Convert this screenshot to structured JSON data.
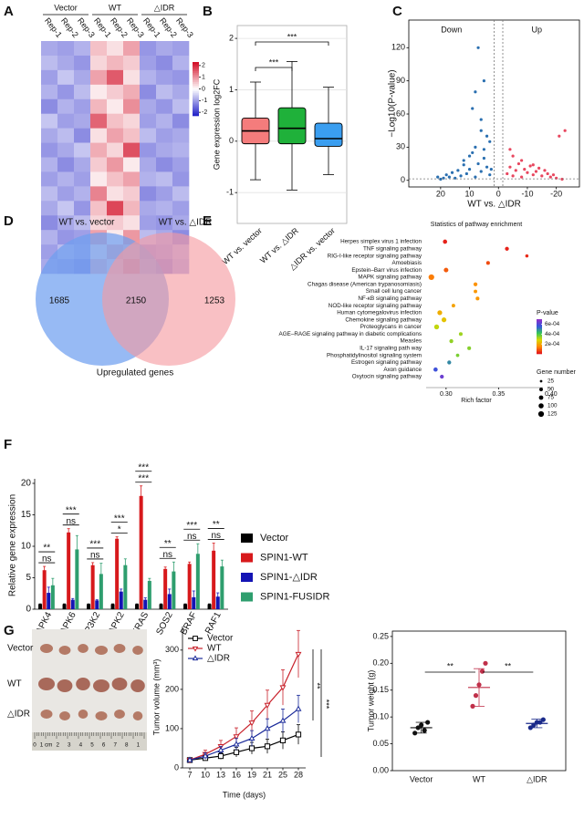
{
  "chart_data": [
    {
      "type": "heatmap",
      "panel": "A",
      "groups": [
        "Vector",
        "WT",
        "△IDR"
      ],
      "columns": [
        "Rep-1",
        "Rep-2",
        "Rep-3",
        "Rep-1",
        "Rep-2",
        "Rep-3",
        "Rep-1",
        "Rep-2",
        "Rep-3"
      ],
      "values": [
        [
          -0.9,
          -1.0,
          -0.8,
          0.6,
          0.3,
          0.9,
          -1.1,
          -0.9,
          -1.0
        ],
        [
          -0.7,
          -0.9,
          -1.1,
          0.4,
          0.7,
          0.5,
          -1.0,
          -1.2,
          -0.8
        ],
        [
          -1.0,
          -0.6,
          -0.9,
          0.9,
          1.6,
          0.3,
          -0.8,
          -1.0,
          -1.1
        ],
        [
          -0.8,
          -1.1,
          -0.7,
          0.2,
          0.5,
          0.8,
          -1.2,
          -0.7,
          -0.9
        ],
        [
          -1.2,
          -0.8,
          -1.0,
          0.7,
          0.2,
          1.1,
          -0.9,
          -1.1,
          -0.7
        ],
        [
          -0.6,
          -1.0,
          -0.9,
          1.5,
          0.6,
          0.4,
          -1.0,
          -0.8,
          -1.2
        ],
        [
          -0.9,
          -0.7,
          -1.2,
          0.3,
          0.9,
          0.6,
          -0.7,
          -1.0,
          -0.9
        ],
        [
          -1.1,
          -0.9,
          -0.6,
          0.8,
          0.4,
          1.7,
          -1.1,
          -0.9,
          -0.8
        ],
        [
          -0.8,
          -1.2,
          -0.9,
          0.5,
          1.0,
          0.2,
          -0.9,
          -1.2,
          -1.0
        ],
        [
          -1.0,
          -0.8,
          -1.0,
          0.2,
          0.6,
          0.9,
          -0.8,
          -0.7,
          -1.1
        ],
        [
          -0.7,
          -1.0,
          -0.8,
          1.2,
          0.3,
          0.5,
          -1.2,
          -1.0,
          -0.7
        ],
        [
          -0.9,
          -0.6,
          -1.1,
          0.6,
          1.8,
          0.7,
          -0.9,
          -0.8,
          -1.0
        ],
        [
          -1.2,
          -0.9,
          -0.7,
          0.4,
          0.5,
          0.3,
          -1.0,
          -1.1,
          -0.9
        ],
        [
          -0.8,
          -1.1,
          -1.0,
          0.9,
          0.2,
          1.0,
          -0.7,
          -0.9,
          -1.2
        ],
        [
          -1.0,
          -0.7,
          -0.9,
          0.3,
          0.8,
          0.6,
          -1.1,
          -1.0,
          -0.8
        ],
        [
          -0.9,
          -1.0,
          -1.2,
          0.7,
          0.4,
          1.4,
          -0.8,
          -1.2,
          -0.9
        ]
      ],
      "zlim": [
        -2.3,
        2.3
      ],
      "zticks": [
        2,
        1,
        0,
        -1,
        -2
      ],
      "colormap": [
        "#2323c8",
        "#ffffff",
        "#d3122a"
      ]
    },
    {
      "type": "box",
      "panel": "B",
      "ylabel": "Gene expression log2FC",
      "categories": [
        "WT vs. vector",
        "WT vs. △IDR",
        "△IDR vs. vector"
      ],
      "stats": [
        [
          -0.75,
          -0.05,
          0.2,
          0.45,
          1.15
        ],
        [
          -0.95,
          -0.05,
          0.25,
          0.65,
          1.55
        ],
        [
          -0.65,
          -0.1,
          0.05,
          0.35,
          1.05
        ]
      ],
      "colors": [
        "#f47c7c",
        "#1fb13a",
        "#3a9ef0"
      ],
      "ylim": [
        -1.6,
        2.25
      ],
      "yticks": [
        -1,
        0,
        1,
        2
      ],
      "grid": true,
      "brackets": [
        {
          "pair": [
            0,
            1
          ],
          "label": "***"
        },
        {
          "pair": [
            0,
            2
          ],
          "label": "***"
        }
      ]
    },
    {
      "type": "scatter",
      "panel": "C",
      "xlabel": "WT vs. △IDR",
      "ylabel": "−Log10(P-value)",
      "regions": [
        "Down",
        "Up"
      ],
      "series": [
        {
          "name": "Down",
          "color": "#2a6fb0",
          "x": [
            3,
            4,
            5,
            6,
            7,
            8,
            9,
            10,
            11,
            12,
            13,
            14,
            15,
            16,
            17,
            18,
            19,
            20,
            4,
            6,
            8,
            10,
            12,
            5,
            7,
            9,
            3,
            6,
            2.5,
            8,
            21,
            5
          ],
          "y": [
            5,
            12,
            20,
            8,
            15,
            3,
            25,
            10,
            6,
            18,
            4,
            9,
            2,
            7,
            3,
            5,
            2,
            1,
            40,
            55,
            30,
            22,
            14,
            90,
            120,
            65,
            35,
            45,
            10,
            80,
            3,
            28
          ]
        },
        {
          "name": "Up",
          "color": "#e8475f",
          "x": [
            -3,
            -4,
            -5,
            -6,
            -7,
            -8,
            -9,
            -10,
            -11,
            -12,
            -13,
            -14,
            -15,
            -16,
            -17,
            -18,
            -19,
            -20,
            -22,
            -5,
            -8,
            -12,
            -4,
            -21,
            -23
          ],
          "y": [
            6,
            12,
            4,
            9,
            15,
            3,
            10,
            7,
            13,
            5,
            8,
            11,
            4,
            9,
            6,
            3,
            5,
            2,
            1,
            22,
            18,
            14,
            28,
            40,
            45
          ]
        }
      ],
      "xlim": [
        31,
        -28
      ],
      "xticks": [
        20,
        10,
        0,
        -10,
        -20
      ],
      "ylim": [
        -6,
        145
      ],
      "yticks": [
        0,
        30,
        60,
        90,
        120
      ],
      "vlines": [
        1.5,
        -1.5
      ],
      "hline": 1.3
    },
    {
      "type": "venn",
      "panel": "D",
      "sets": [
        "WT vs. vector",
        "WT vs. △IDR"
      ],
      "values": [
        1685,
        2150,
        1253
      ],
      "caption": "Upregulated  genes",
      "colors": [
        "#6f9ff0",
        "#f59aa0"
      ]
    },
    {
      "type": "dot",
      "panel": "E",
      "title": "Statistics of pathway enrichment",
      "xlabel": "Rich factor",
      "categories": [
        "Herpes simplex virus 1 infection",
        "TNF signaling pathway",
        "RIG-I-like receptor signaling pathway",
        "Amoebiasis",
        "Epstein–Barr virus infection",
        "MAPK signaling pathway",
        "Chagas disease (American trypanosomiasis)",
        "Small cell lung cancer",
        "NF-κB signaling pathway",
        "NOD-like receptor signaling pathway",
        "Human cytomegalovirus infection",
        "Chemokine signaling pathway",
        "Proteoglycans in cancer",
        "AGE–RAGE signaling pathway in diabetic complications",
        "Measles",
        "IL-17 signaling path way",
        "Phosphatidylinositol signaling system",
        "Estrogen signaling pathway",
        "Axon guidance",
        "Oxytocin signaling pathway"
      ],
      "x": [
        0.299,
        0.358,
        0.377,
        0.34,
        0.3,
        0.286,
        0.328,
        0.328,
        0.33,
        0.307,
        0.294,
        0.298,
        0.291,
        0.314,
        0.305,
        0.322,
        0.311,
        0.303,
        0.29,
        0.296
      ],
      "pvalue": [
        1e-05,
        1e-05,
        2e-05,
        6e-05,
        8e-05,
        0.00012,
        0.00015,
        0.00016,
        0.00016,
        0.00018,
        0.0002,
        0.00024,
        0.0003,
        0.00033,
        0.00034,
        0.00035,
        0.00036,
        0.0005,
        0.00058,
        0.00065
      ],
      "genes": [
        70,
        60,
        40,
        55,
        80,
        125,
        60,
        50,
        55,
        50,
        90,
        90,
        95,
        55,
        60,
        55,
        45,
        60,
        70,
        60
      ],
      "xlim": [
        0.281,
        0.401
      ],
      "xticks": [
        {
          "value": 0.3,
          "label": "0.30"
        },
        0.35,
        {
          "value": 0.4,
          "label": "0.40"
        }
      ],
      "color_title": "P-value",
      "plim": [
        0,
        0.0007
      ],
      "pticks": [
        {
          "value": 0.0006,
          "label": "6e-04"
        },
        {
          "value": 0.0004,
          "label": "4e-04"
        },
        {
          "value": 0.0002,
          "label": "2e-04"
        }
      ],
      "colormap": [
        "#e41a1c",
        "#ff8c00",
        "#d9d900",
        "#33c759",
        "#3358dd",
        "#8a2fc8"
      ],
      "size_title": "Gene  number",
      "size_ticks": [
        25,
        50,
        75,
        100,
        125
      ]
    },
    {
      "type": "bar",
      "panel": "F",
      "ylabel": "Relative gene expression",
      "categories": [
        "MAPK4",
        "MAPK6",
        "MAP3K2",
        "MAPKAPK2",
        "KRAS",
        "SOS2",
        "BRAF",
        "RAF1"
      ],
      "series": [
        {
          "name": "Vector",
          "color": "#000000",
          "values": [
            0.8,
            0.8,
            0.8,
            0.8,
            0.8,
            0.8,
            0.8,
            0.8
          ],
          "errors": [
            0.05,
            0.05,
            0.05,
            0.05,
            0.05,
            0.05,
            0.05,
            0.05
          ]
        },
        {
          "name": "SPIN1-WT",
          "color": "#d7191c",
          "values": [
            6.2,
            12.2,
            7.0,
            11.2,
            18.0,
            6.4,
            7.2,
            9.3
          ],
          "errors": [
            0.6,
            0.6,
            0.4,
            0.3,
            1.6,
            0.3,
            0.3,
            1.2
          ]
        },
        {
          "name": "SPIN1-△IDR",
          "color": "#1414b4",
          "values": [
            2.6,
            1.5,
            1.4,
            2.8,
            1.5,
            2.4,
            1.9,
            2.0
          ],
          "errors": [
            0.9,
            0.2,
            0.1,
            0.4,
            0.3,
            0.8,
            1.0,
            0.6
          ]
        },
        {
          "name": "SPIN1-FUSIDR",
          "color": "#2e9e6e",
          "values": [
            3.8,
            9.5,
            5.6,
            7.0,
            4.5,
            6.0,
            8.8,
            6.8
          ],
          "errors": [
            1.1,
            2.2,
            1.7,
            1.0,
            0.4,
            1.5,
            1.6,
            1.0
          ]
        }
      ],
      "ylim": [
        0,
        20
      ],
      "yticks": [
        0,
        5,
        10,
        15,
        20
      ],
      "significance": [
        [
          "**",
          "ns"
        ],
        [
          "***",
          "ns"
        ],
        [
          "***",
          "ns"
        ],
        [
          "***",
          "*"
        ],
        [
          "***",
          "***"
        ],
        [
          "**",
          "ns"
        ],
        [
          "***",
          "ns"
        ],
        [
          "**",
          "ns"
        ]
      ]
    },
    {
      "type": "photo",
      "panel": "G",
      "row_labels": [
        "Vector",
        "WT",
        "△IDR"
      ],
      "ruler_labels": [
        "0",
        "1 cm",
        "2",
        "3",
        "4",
        "5",
        "6",
        "7",
        "8",
        "1"
      ]
    },
    {
      "type": "line",
      "xlabel": "Time (days)",
      "ylabel": "Tumor volume (mm³)",
      "categories": [
        "7",
        "10",
        "13",
        "16",
        "19",
        "21",
        "25",
        "28"
      ],
      "series": [
        {
          "name": "Vector",
          "color": "#000000",
          "marker": "square",
          "values": [
            20,
            25,
            30,
            40,
            50,
            55,
            70,
            85
          ],
          "errors": [
            4,
            6,
            8,
            12,
            15,
            18,
            22,
            25
          ]
        },
        {
          "name": "WT",
          "color": "#c8202a",
          "marker": "triangle",
          "values": [
            20,
            35,
            55,
            80,
            115,
            160,
            205,
            290
          ],
          "errors": [
            5,
            10,
            15,
            22,
            30,
            38,
            45,
            60
          ]
        },
        {
          "name": "△IDR",
          "color": "#1a2a9a",
          "marker": "triangle-down",
          "values": [
            20,
            30,
            45,
            60,
            75,
            100,
            120,
            150
          ],
          "errors": [
            4,
            8,
            10,
            15,
            20,
            25,
            30,
            35
          ]
        }
      ],
      "ylim": [
        0,
        360
      ],
      "yticks": [
        0,
        100,
        200,
        300
      ],
      "significance": [
        "**",
        "***"
      ]
    },
    {
      "type": "strip",
      "ylabel": "Tumor weight (g)",
      "categories": [
        "Vector",
        "WT",
        "△IDR"
      ],
      "values": [
        [
          0.07,
          0.08,
          0.085,
          0.075,
          0.09
        ],
        [
          0.12,
          0.14,
          0.16,
          0.185,
          0.2
        ],
        [
          0.08,
          0.085,
          0.09,
          0.09,
          0.095
        ]
      ],
      "means": [
        0.08,
        0.155,
        0.088
      ],
      "sds": [
        0.01,
        0.035,
        0.008
      ],
      "colors": [
        "#111111",
        "#c0304a",
        "#1a2a8a"
      ],
      "ylim": [
        0,
        0.26
      ],
      "yticks": [
        {
          "value": 0,
          "label": "0.00"
        },
        {
          "value": 0.05,
          "label": "0.05"
        },
        {
          "value": 0.1,
          "label": "0.10"
        },
        {
          "value": 0.15,
          "label": "0.15"
        },
        {
          "value": 0.2,
          "label": "0.20"
        },
        {
          "value": 0.25,
          "label": "0.25"
        }
      ],
      "brackets": [
        {
          "pair": [
            0,
            1
          ],
          "label": "**"
        },
        {
          "pair": [
            1,
            2
          ],
          "label": "**"
        }
      ]
    }
  ]
}
